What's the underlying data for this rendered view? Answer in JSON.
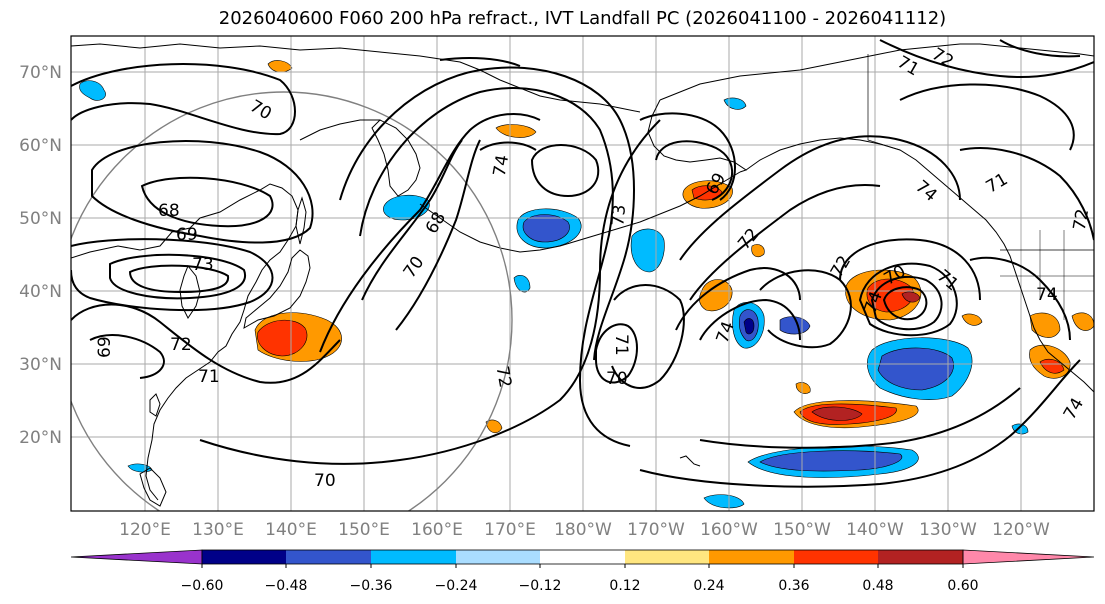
{
  "title": "2026040600 F060 200 hPa refract., IVT Landfall PC (2026041100 - 2026041112)",
  "lat_labels": [
    "70°N",
    "60°N",
    "50°N",
    "40°N",
    "30°N",
    "20°N"
  ],
  "lon_labels": [
    "120°E",
    "130°E",
    "140°E",
    "150°E",
    "160°E",
    "170°E",
    "180°W",
    "170°W",
    "160°W",
    "150°W",
    "140°W",
    "130°W",
    "120°W"
  ],
  "contour_labels": [
    "70",
    "68",
    "69",
    "73",
    "72",
    "71",
    "69",
    "70",
    "68",
    "70",
    "74",
    "72",
    "73",
    "70",
    "71",
    "72",
    "74",
    "69",
    "72",
    "74",
    "70",
    "71",
    "74",
    "71",
    "72",
    "71",
    "74",
    "72",
    "74"
  ],
  "colorbar": {
    "ticks": [
      "−0.60",
      "−0.48",
      "−0.36",
      "−0.24",
      "−0.12",
      "0.12",
      "0.24",
      "0.36",
      "0.48",
      "0.60"
    ],
    "colors": [
      "#9933cc",
      "#000088",
      "#3355cc",
      "#00bbff",
      "#aaddff",
      "#ffffff",
      "#ffe680",
      "#ff9900",
      "#ff3300",
      "#b22222",
      "#ff88aa"
    ]
  },
  "colors": {
    "contour": "#000000",
    "grid": "#aaaaaa",
    "circle": "#808080"
  }
}
